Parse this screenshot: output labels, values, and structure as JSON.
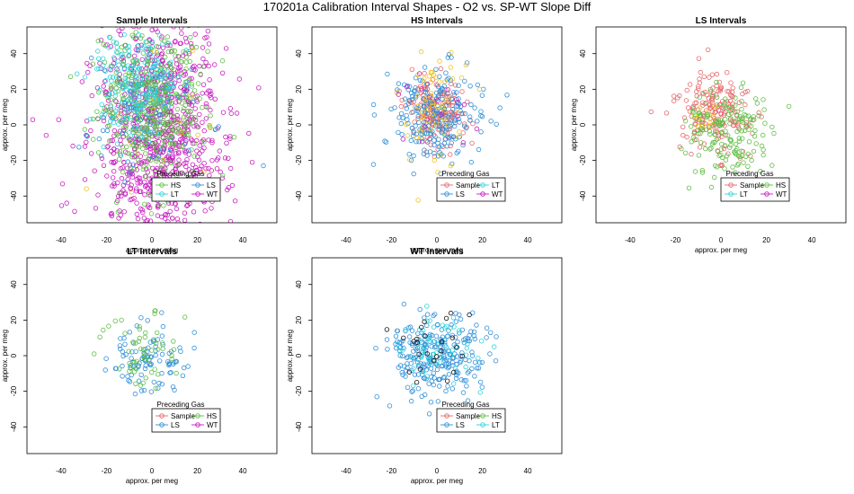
{
  "page_title": "170201a   Calibration Interval Shapes - O2 vs. SP-WT Slope Diff",
  "colors": {
    "Sample": "#E8686B",
    "HS": "#5FBF45",
    "LS": "#2E8FD8",
    "LT": "#2ED3DA",
    "WT": "#C81CC0",
    "unknown": "#111111",
    "misc": "#F2C21B"
  },
  "chart_data": [
    {
      "type": "scatter",
      "title": "Sample Intervals",
      "xlabel": "approx. per meg",
      "ylabel": "approx. per meg",
      "xlim": [
        -55,
        55
      ],
      "ylim": [
        -55,
        55
      ],
      "xticks": [
        -40,
        -20,
        0,
        20,
        40
      ],
      "yticks": [
        -40,
        -20,
        0,
        20,
        40
      ],
      "legend": {
        "title": "Preceding Gas",
        "entries": [
          "HS",
          "LS",
          "LT",
          "WT"
        ],
        "position": "bottom-right"
      },
      "series": [
        {
          "name": "WT",
          "count": 950,
          "mean": [
            2,
            -5
          ],
          "sd": [
            14,
            34
          ],
          "clip": true
        },
        {
          "name": "HS",
          "count": 450,
          "mean": [
            0,
            10
          ],
          "sd": [
            11,
            22
          ],
          "clip": true
        },
        {
          "name": "LT",
          "count": 220,
          "mean": [
            -5,
            20
          ],
          "sd": [
            9,
            16
          ],
          "clip": true
        },
        {
          "name": "LS",
          "count": 50,
          "mean": [
            -5,
            0
          ],
          "sd": [
            15,
            20
          ],
          "clip": true
        },
        {
          "name": "misc",
          "count": 20,
          "mean": [
            0,
            0
          ],
          "sd": [
            15,
            28
          ],
          "clip": true
        }
      ]
    },
    {
      "type": "scatter",
      "title": "HS Intervals",
      "xlabel": "approx. per meg",
      "ylabel": "approx. per meg",
      "xlim": [
        -55,
        55
      ],
      "ylim": [
        -55,
        55
      ],
      "xticks": [
        -40,
        -20,
        0,
        20,
        40
      ],
      "yticks": [
        -40,
        -20,
        0,
        20,
        40
      ],
      "legend": {
        "title": "Preceding Gas",
        "entries": [
          "Sample",
          "LT",
          "LS",
          "WT"
        ],
        "position": "bottom-right"
      },
      "series": [
        {
          "name": "Sample",
          "count": 160,
          "mean": [
            0,
            8
          ],
          "sd": [
            7,
            10
          ]
        },
        {
          "name": "LS",
          "count": 230,
          "mean": [
            0,
            5
          ],
          "sd": [
            10,
            13
          ]
        },
        {
          "name": "misc",
          "count": 60,
          "mean": [
            0,
            10
          ],
          "sd": [
            8,
            15
          ]
        },
        {
          "name": "WT",
          "count": 20,
          "mean": [
            0,
            10
          ],
          "sd": [
            8,
            10
          ]
        }
      ]
    },
    {
      "type": "scatter",
      "title": "LS Intervals",
      "xlabel": "approx. per meg",
      "ylabel": "approx. per meg",
      "xlim": [
        -55,
        55
      ],
      "ylim": [
        -55,
        55
      ],
      "xticks": [
        -40,
        -20,
        0,
        20,
        40
      ],
      "yticks": [
        -40,
        -20,
        0,
        20,
        40
      ],
      "legend": {
        "title": "Preceding Gas",
        "entries": [
          "Sample",
          "HS",
          "LT",
          "WT"
        ],
        "position": "bottom-right"
      },
      "series": [
        {
          "name": "Sample",
          "count": 180,
          "mean": [
            -2,
            8
          ],
          "sd": [
            9,
            12
          ]
        },
        {
          "name": "HS",
          "count": 170,
          "mean": [
            2,
            -5
          ],
          "sd": [
            11,
            14
          ]
        },
        {
          "name": "misc",
          "count": 10,
          "mean": [
            -5,
            5
          ],
          "sd": [
            4,
            6
          ]
        }
      ]
    },
    {
      "type": "scatter",
      "title": "LT Intervals",
      "xlabel": "approx. per meg",
      "ylabel": "approx. per meg",
      "xlim": [
        -55,
        55
      ],
      "ylim": [
        -55,
        55
      ],
      "xticks": [
        -40,
        -20,
        0,
        20,
        40
      ],
      "yticks": [
        -40,
        -20,
        0,
        20,
        40
      ],
      "legend": {
        "title": "Preceding Gas",
        "entries": [
          "Sample",
          "HS",
          "LS",
          "WT"
        ],
        "position": "bottom-right"
      },
      "series": [
        {
          "name": "LS",
          "count": 100,
          "mean": [
            0,
            -2
          ],
          "sd": [
            9,
            9
          ]
        },
        {
          "name": "HS",
          "count": 55,
          "mean": [
            -3,
            3
          ],
          "sd": [
            8,
            8
          ]
        }
      ]
    },
    {
      "type": "scatter",
      "title": "WT Intervals",
      "xlabel": "approx. per meg",
      "ylabel": "approx. per meg",
      "xlim": [
        -55,
        55
      ],
      "ylim": [
        -55,
        55
      ],
      "xticks": [
        -40,
        -20,
        0,
        20,
        40
      ],
      "yticks": [
        -40,
        -20,
        0,
        20,
        40
      ],
      "legend": {
        "title": "Preceding Gas",
        "entries": [
          "Sample",
          "HS",
          "LS",
          "LT"
        ],
        "position": "bottom-right"
      },
      "series": [
        {
          "name": "LS",
          "count": 250,
          "mean": [
            0,
            0
          ],
          "sd": [
            11,
            11
          ]
        },
        {
          "name": "LT",
          "count": 60,
          "mean": [
            0,
            2
          ],
          "sd": [
            9,
            9
          ]
        },
        {
          "name": "unknown",
          "count": 25,
          "mean": [
            0,
            5
          ],
          "sd": [
            10,
            10
          ]
        }
      ]
    }
  ]
}
